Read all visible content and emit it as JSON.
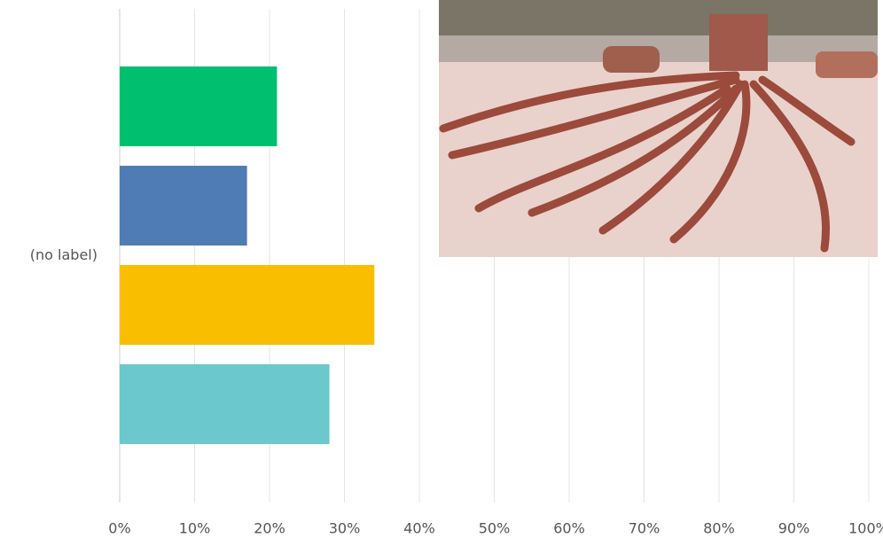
{
  "chart_data": {
    "type": "hbar",
    "categories": [
      "(no label)"
    ],
    "series": [
      {
        "color": "#00bf6f",
        "values": [
          21
        ]
      },
      {
        "color": "#507cb6",
        "values": [
          17
        ]
      },
      {
        "color": "#f9be00",
        "values": [
          34
        ]
      },
      {
        "color": "#6bc8cd",
        "values": [
          28
        ]
      }
    ],
    "xlim": [
      0,
      100
    ],
    "xticks": [
      {
        "value": 0,
        "label": "0%"
      },
      {
        "value": 10,
        "label": "10%"
      },
      {
        "value": 20,
        "label": "20%"
      },
      {
        "value": 30,
        "label": "30%"
      },
      {
        "value": 40,
        "label": "40%"
      },
      {
        "value": 50,
        "label": "50%"
      },
      {
        "value": 60,
        "label": "60%"
      },
      {
        "value": 70,
        "label": "70%"
      },
      {
        "value": 80,
        "label": "80%"
      },
      {
        "value": 90,
        "label": "90%"
      },
      {
        "value": 100,
        "label": "100%"
      }
    ],
    "grid": true
  }
}
